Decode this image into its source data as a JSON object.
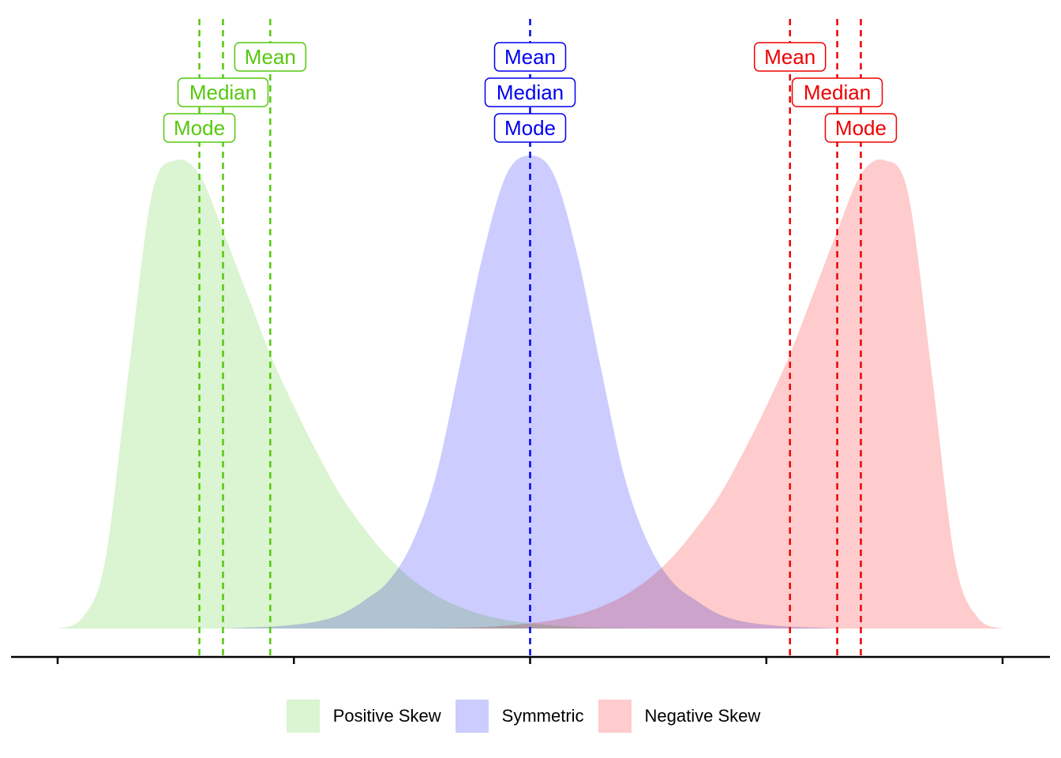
{
  "chart_data": {
    "type": "area",
    "title": "",
    "xlabel": "",
    "ylabel": "",
    "xlim": [
      -1.0,
      20.0
    ],
    "ylim": [
      0,
      1.0
    ],
    "grid": false,
    "legend_position": "bottom",
    "x_ticks": [
      0,
      5,
      10,
      15,
      20
    ],
    "series": [
      {
        "name": "Positive Skew",
        "fill": "#dbf4d1",
        "line": "#55c80e",
        "x": [
          0.0,
          0.5,
          1.0,
          1.5,
          2.0,
          2.5,
          3.0,
          3.5,
          4.0,
          4.5,
          5.0,
          5.5,
          6.0,
          6.5,
          7.0,
          7.5,
          8.0,
          8.5,
          9.0,
          9.5,
          10.0,
          10.5,
          11.0,
          11.5,
          12.0,
          12.5,
          13.0
        ],
        "y": [
          0.0,
          0.02,
          0.14,
          0.54,
          0.92,
          0.99,
          0.96,
          0.84,
          0.71,
          0.58,
          0.47,
          0.37,
          0.28,
          0.21,
          0.15,
          0.104,
          0.07,
          0.046,
          0.029,
          0.018,
          0.011,
          0.006,
          0.003,
          0.0015,
          0.0007,
          0.0003,
          0.0
        ],
        "markers": [
          {
            "label": "Mode",
            "x": 3.0
          },
          {
            "label": "Median",
            "x": 3.5
          },
          {
            "label": "Mean",
            "x": 4.5
          }
        ]
      },
      {
        "name": "Symmetric",
        "fill": "#ccccfe",
        "line": "#0000ee",
        "x": [
          3.5,
          4.0,
          4.5,
          5.0,
          5.5,
          6.0,
          6.5,
          7.0,
          7.5,
          8.0,
          8.5,
          9.0,
          9.5,
          10.0,
          10.5,
          11.0,
          11.5,
          12.0,
          12.5,
          13.0,
          13.5,
          14.0,
          14.5,
          15.0,
          15.5,
          16.0,
          16.5
        ],
        "y": [
          0.0,
          0.002,
          0.004,
          0.008,
          0.015,
          0.03,
          0.06,
          0.1,
          0.18,
          0.32,
          0.55,
          0.79,
          0.96,
          1.0,
          0.96,
          0.79,
          0.55,
          0.32,
          0.18,
          0.1,
          0.06,
          0.03,
          0.015,
          0.008,
          0.004,
          0.002,
          0.0
        ],
        "markers": [
          {
            "label": "Mode",
            "x": 10.0
          },
          {
            "label": "Median",
            "x": 10.0
          },
          {
            "label": "Mean",
            "x": 10.0
          }
        ]
      },
      {
        "name": "Negative Skew",
        "fill": "#fecccc",
        "line": "#ee0000",
        "x": [
          7.0,
          7.5,
          8.0,
          8.5,
          9.0,
          9.5,
          10.0,
          10.5,
          11.0,
          11.5,
          12.0,
          12.5,
          13.0,
          13.5,
          14.0,
          14.5,
          15.0,
          15.5,
          16.0,
          16.5,
          17.0,
          17.5,
          18.0,
          18.5,
          19.0,
          19.5,
          20.0
        ],
        "y": [
          0.0,
          0.0003,
          0.0007,
          0.0015,
          0.003,
          0.006,
          0.011,
          0.018,
          0.029,
          0.046,
          0.07,
          0.104,
          0.15,
          0.21,
          0.28,
          0.37,
          0.47,
          0.58,
          0.71,
          0.84,
          0.96,
          0.99,
          0.92,
          0.54,
          0.14,
          0.02,
          0.0
        ],
        "markers": [
          {
            "label": "Mode",
            "x": 17.0
          },
          {
            "label": "Median",
            "x": 16.5
          },
          {
            "label": "Mean",
            "x": 15.5
          }
        ]
      }
    ]
  },
  "legend": {
    "items": [
      {
        "label": "Positive Skew",
        "color": "#dbf4d1"
      },
      {
        "label": "Symmetric",
        "color": "#ccccfe"
      },
      {
        "label": "Negative Skew",
        "color": "#fecccc"
      }
    ]
  }
}
